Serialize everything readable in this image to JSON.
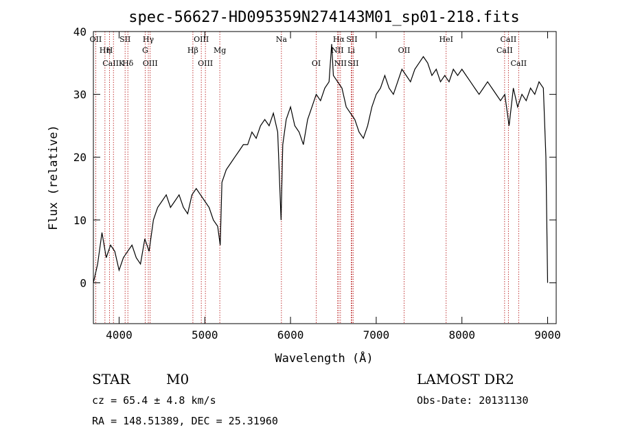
{
  "chart_data": {
    "type": "line",
    "title": "spec-56627-HD095359N274143M01_sp01-218.fits",
    "xlabel": "Wavelength (Å)",
    "ylabel": "Flux (relative)",
    "xlim": [
      3700,
      9100
    ],
    "ylim": [
      -6.5,
      40
    ],
    "xticks": [
      4000,
      5000,
      6000,
      7000,
      8000,
      9000
    ],
    "yticks": [
      0,
      10,
      20,
      30,
      40
    ],
    "grid": false,
    "series": [
      {
        "x": [
          3700,
          3750,
          3800,
          3850,
          3900,
          3950,
          4000,
          4050,
          4100,
          4150,
          4200,
          4250,
          4300,
          4350,
          4400,
          4450,
          4500,
          4550,
          4600,
          4650,
          4700,
          4750,
          4800,
          4850,
          4900,
          4950,
          5000,
          5050,
          5100,
          5150,
          5180,
          5200,
          5250,
          5300,
          5350,
          5400,
          5450,
          5500,
          5550,
          5600,
          5650,
          5700,
          5750,
          5800,
          5850,
          5890,
          5910,
          5950,
          6000,
          6050,
          6100,
          6150,
          6200,
          6250,
          6300,
          6350,
          6400,
          6450,
          6480,
          6500,
          6550,
          6600,
          6650,
          6700,
          6750,
          6800,
          6850,
          6900,
          6950,
          7000,
          7050,
          7100,
          7150,
          7200,
          7250,
          7300,
          7350,
          7400,
          7450,
          7500,
          7550,
          7600,
          7650,
          7700,
          7750,
          7800,
          7850,
          7900,
          7950,
          8000,
          8050,
          8100,
          8150,
          8200,
          8250,
          8300,
          8350,
          8400,
          8450,
          8500,
          8550,
          8600,
          8650,
          8700,
          8750,
          8800,
          8850,
          8900,
          8950,
          8980,
          9000
        ],
        "y": [
          0,
          3,
          8,
          4,
          6,
          5,
          2,
          4,
          5,
          6,
          4,
          3,
          7,
          5,
          10,
          12,
          13,
          14,
          12,
          13,
          14,
          12,
          11,
          14,
          15,
          14,
          13,
          12,
          10,
          9,
          6,
          16,
          18,
          19,
          20,
          21,
          22,
          22,
          24,
          23,
          25,
          26,
          25,
          27,
          24,
          10,
          22,
          26,
          28,
          25,
          24,
          22,
          26,
          28,
          30,
          29,
          31,
          32,
          38,
          33,
          32,
          31,
          28,
          27,
          26,
          24,
          23,
          25,
          28,
          30,
          31,
          33,
          31,
          30,
          32,
          34,
          33,
          32,
          34,
          35,
          36,
          35,
          33,
          34,
          32,
          33,
          32,
          34,
          33,
          34,
          33,
          32,
          31,
          30,
          31,
          32,
          31,
          30,
          29,
          30,
          25,
          31,
          28,
          30,
          29,
          31,
          30,
          32,
          31,
          20,
          0
        ]
      }
    ],
    "lines": [
      {
        "label": "OII",
        "wl": 3727,
        "row": 0
      },
      {
        "label": "Hη",
        "wl": 3835,
        "row": 1
      },
      {
        "label": "H",
        "wl": 3889,
        "row": 1
      },
      {
        "label": "CaIIK",
        "wl": 3934,
        "row": 2
      },
      {
        "label": "SII",
        "wl": 4070,
        "row": 0
      },
      {
        "label": "Hδ",
        "wl": 4102,
        "row": 2
      },
      {
        "label": "Hγ",
        "wl": 4341,
        "row": 0
      },
      {
        "label": "G",
        "wl": 4304,
        "row": 1
      },
      {
        "label": "OIII",
        "wl": 4363,
        "row": 2
      },
      {
        "label": "OIII",
        "wl": 4959,
        "row": 0
      },
      {
        "label": "Hβ",
        "wl": 4861,
        "row": 1
      },
      {
        "label": "OIII",
        "wl": 5007,
        "row": 2
      },
      {
        "label": "Mg",
        "wl": 5175,
        "row": 1
      },
      {
        "label": "Na",
        "wl": 5894,
        "row": 0
      },
      {
        "label": "OI",
        "wl": 6300,
        "row": 2
      },
      {
        "label": "Hα",
        "wl": 6563,
        "row": 0
      },
      {
        "label": "SII",
        "wl": 6716,
        "row": 0
      },
      {
        "label": "NII",
        "wl": 6548,
        "row": 1
      },
      {
        "label": "Li",
        "wl": 6708,
        "row": 1
      },
      {
        "label": "NII",
        "wl": 6583,
        "row": 2
      },
      {
        "label": "SII",
        "wl": 6731,
        "row": 2
      },
      {
        "label": "OII",
        "wl": 7325,
        "row": 1
      },
      {
        "label": "HeI",
        "wl": 7816,
        "row": 0
      },
      {
        "label": "CaII",
        "wl": 8542,
        "row": 0
      },
      {
        "label": "CaII",
        "wl": 8498,
        "row": 1
      },
      {
        "label": "CaII",
        "wl": 8662,
        "row": 2
      }
    ]
  },
  "info": {
    "class": "STAR",
    "subclass": "M0",
    "survey": "LAMOST DR2",
    "cz": "cz = 65.4 ± 4.8 km/s",
    "obs_date": "Obs-Date: 20131130",
    "radec": "RA = 148.51389, DEC =  25.31960"
  }
}
